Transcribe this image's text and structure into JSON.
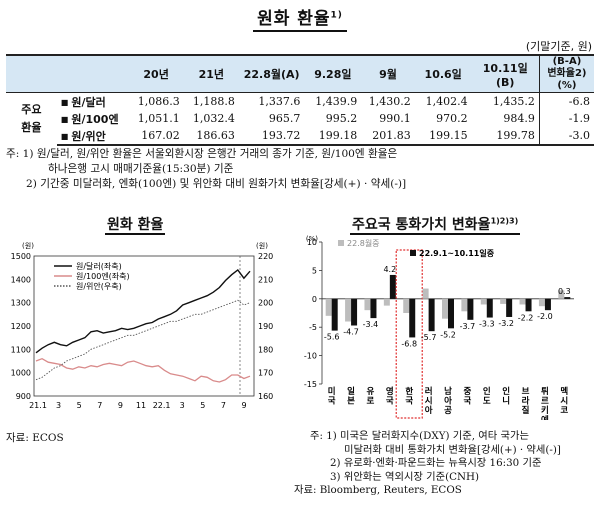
{
  "title": "원화 환율",
  "title_sup": "1)",
  "unit": "(기말기준, 원)",
  "table": {
    "headers": [
      "20년",
      "21년",
      "22.8월(A)",
      "9.28일",
      "9월",
      "10.6일",
      "10.11일(B)"
    ],
    "last_header": [
      "(B-A)",
      "변화율2)(%)"
    ],
    "group_label": [
      "주요",
      "환율"
    ],
    "rows": [
      {
        "label": "원/달러",
        "values": [
          "1,086.3",
          "1,188.8",
          "1,337.6",
          "1,439.9",
          "1,430.2",
          "1,402.4",
          "1,435.2"
        ],
        "change": "-6.8"
      },
      {
        "label": "원/100엔",
        "values": [
          "1,051.1",
          "1,032.4",
          "965.7",
          "995.2",
          "990.1",
          "970.2",
          "984.9"
        ],
        "change": "-1.9"
      },
      {
        "label": "원/위안",
        "values": [
          "167.02",
          "186.63",
          "193.72",
          "199.18",
          "201.83",
          "199.15",
          "199.78"
        ],
        "change": "-3.0"
      }
    ]
  },
  "notes": [
    "주: 1) 원/달러, 원/위안 환율은 서울외환시장 은행간 거래의 종가 기준, 원/100엔 환율은",
    "하나은행 고시 매매기준율(15:30분) 기준",
    "2) 기간중 미달러화, 엔화(100엔) 및 위안화 대비 원화가치 변화율[강세(+) · 약세(-)]"
  ],
  "left_chart": {
    "title": "원화 환율",
    "source": "자료: ECOS",
    "left_axis_unit": "(원)",
    "right_axis_unit": "(원)",
    "legend": [
      "원/달러(좌축)",
      "원/100엔(좌축)",
      "원/위안(우축)"
    ],
    "colors": {
      "usd": "#111111",
      "jpy": "#d98b8b",
      "cny": "#555555"
    }
  },
  "right_chart": {
    "title": "주요국 통화가치 변화율",
    "title_sup": "1)2)3)",
    "axis_unit": "(%)",
    "legend": [
      "22.8월중",
      "22.9.1~10.11일중"
    ],
    "colors": {
      "aug": "#bdbdbd",
      "period": "#111111",
      "highlight": "#e03030"
    },
    "notes": [
      "주: 1) 미국은 달러화지수(DXY) 기준, 여타 국가는",
      "미달러화 대비 통화가치 변화율[강세(+) · 약세(-)]",
      "2) 유로화·엔화·파운드화는 뉴욕시장 16:30 기준",
      "3) 위안화는 역외시장 기준(CNH)"
    ],
    "source": "자료: Bloomberg, Reuters, ECOS"
  },
  "chart_data": [
    {
      "type": "line",
      "title": "원화 환율",
      "x_tick_labels": [
        "21.1",
        "3",
        "5",
        "7",
        "9",
        "11",
        "22.1",
        "3",
        "5",
        "7",
        "9"
      ],
      "left_axis": {
        "label": "(원)",
        "ylim": [
          900,
          1500
        ],
        "ticks": [
          900,
          1000,
          1100,
          1200,
          1300,
          1400,
          1500
        ]
      },
      "right_axis": {
        "label": "(원)",
        "ylim": [
          160,
          220
        ],
        "ticks": [
          160,
          170,
          180,
          190,
          200,
          210,
          220
        ]
      },
      "series": [
        {
          "name": "원/달러(좌축)",
          "axis": "left",
          "values": [
            1085,
            1105,
            1120,
            1130,
            1120,
            1115,
            1130,
            1140,
            1150,
            1175,
            1180,
            1170,
            1175,
            1180,
            1190,
            1185,
            1190,
            1200,
            1210,
            1215,
            1230,
            1240,
            1250,
            1265,
            1290,
            1300,
            1310,
            1320,
            1330,
            1345,
            1365,
            1395,
            1420,
            1440,
            1405,
            1435
          ]
        },
        {
          "name": "원/100엔(좌축)",
          "axis": "left",
          "values": [
            1050,
            1060,
            1045,
            1040,
            1035,
            1020,
            1015,
            1025,
            1020,
            1030,
            1025,
            1035,
            1040,
            1035,
            1030,
            1045,
            1050,
            1040,
            1030,
            1025,
            1030,
            1010,
            995,
            990,
            985,
            975,
            965,
            985,
            980,
            965,
            960,
            970,
            990,
            990,
            975,
            985
          ]
        },
        {
          "name": "원/위안(우축)",
          "axis": "right",
          "values": [
            167,
            168,
            170,
            172,
            173,
            175,
            176,
            177,
            178,
            180,
            181,
            182,
            183,
            184,
            185,
            186,
            186,
            187,
            188,
            189,
            190,
            191,
            192,
            192,
            193,
            194,
            195,
            195,
            196,
            197,
            198,
            199,
            200,
            201,
            199,
            200
          ]
        }
      ]
    },
    {
      "type": "bar",
      "title": "주요국 통화가치 변화율",
      "categories": [
        "미국",
        "일본",
        "유로",
        "영국",
        "한국",
        "러시아",
        "남아공",
        "중국",
        "인도",
        "인니",
        "브라질",
        "튀르키예",
        "멕시코"
      ],
      "ylim": [
        -15,
        10
      ],
      "yticks": [
        -15,
        -10,
        -5,
        0,
        5,
        10
      ],
      "series": [
        {
          "name": "22.8월중",
          "values": [
            -3.0,
            -4.0,
            -2.0,
            -1.2,
            -2.5,
            1.8,
            -3.5,
            -2.2,
            -1.0,
            -0.9,
            -1.0,
            -1.3,
            1.5
          ]
        },
        {
          "name": "22.9.1~10.11일중",
          "values": [
            -5.6,
            -4.7,
            -3.4,
            4.2,
            -6.8,
            -5.7,
            -5.2,
            -3.7,
            -3.3,
            -3.2,
            -2.2,
            -2.0,
            0.3
          ]
        }
      ],
      "data_labels": [
        "-5.6",
        "-4.7",
        "-3.4",
        "4.2",
        "-6.8",
        "-5.7",
        "-5.2",
        "-3.7",
        "-3.3",
        "-3.2",
        "-2.2",
        "-2.0",
        "0.3"
      ]
    }
  ]
}
